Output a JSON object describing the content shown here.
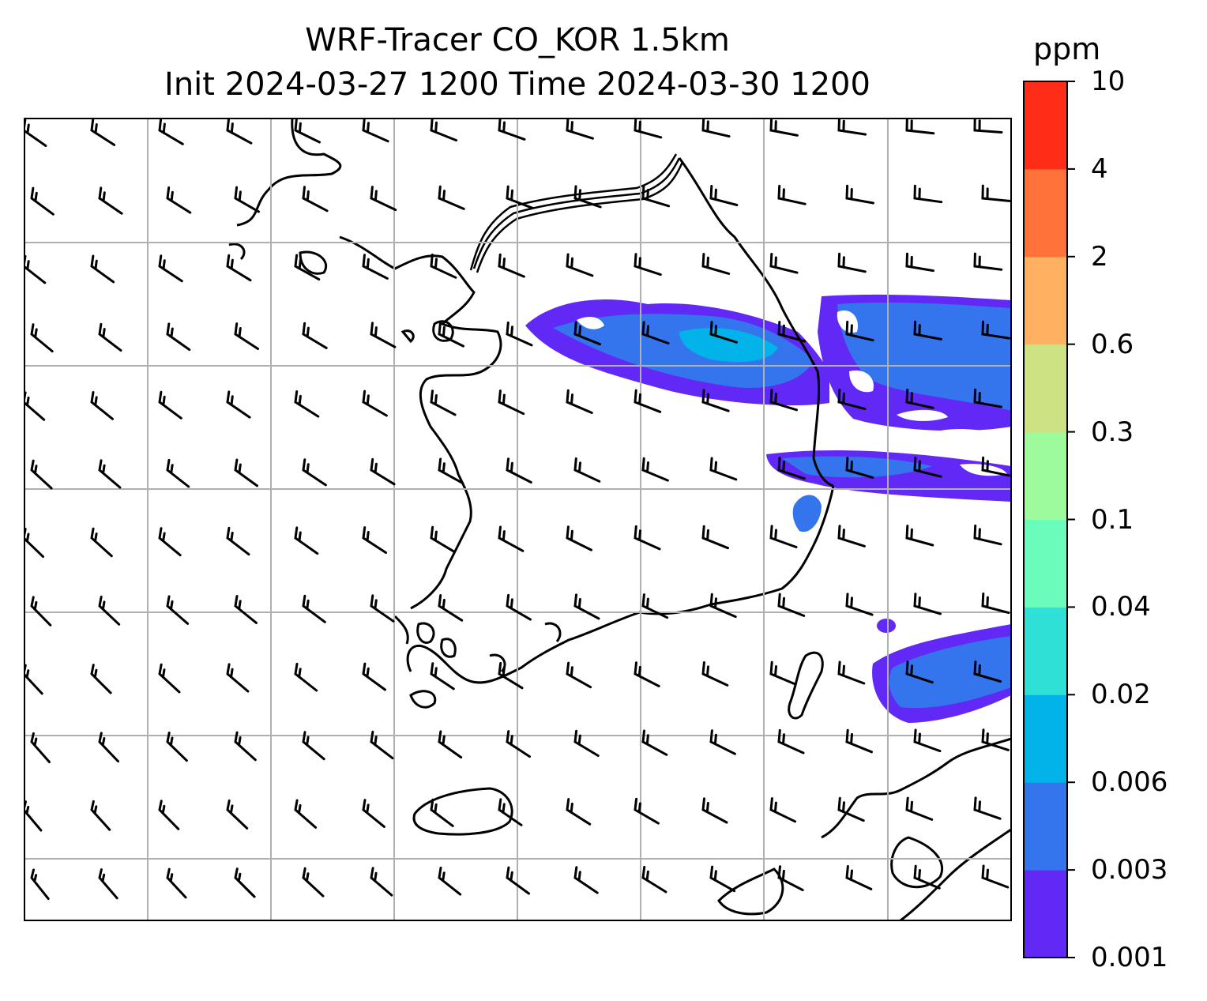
{
  "title": "WRF-Tracer CO_KOR 1.5km",
  "subtitle": "Init 2024-03-27 1200 Time 2024-03-30 1200",
  "colorbar": {
    "unit": "ppm",
    "levels": [
      "0.001",
      "0.003",
      "0.006",
      "0.02",
      "0.04",
      "0.1",
      "0.3",
      "0.6",
      "2",
      "4",
      "10"
    ],
    "colors": [
      "#6228f6",
      "#3475ee",
      "#02b3ea",
      "#2fe0d6",
      "#6afcbb",
      "#9dfb9b",
      "#cde383",
      "#ffb060",
      "#ff733a",
      "#ff2d17"
    ]
  },
  "map": {
    "gridlines": true,
    "grid_color": "#b0b0b0",
    "coastline_color": "#000000",
    "wind_barbs": true,
    "tracer_field": "CO concentration filled contours"
  }
}
